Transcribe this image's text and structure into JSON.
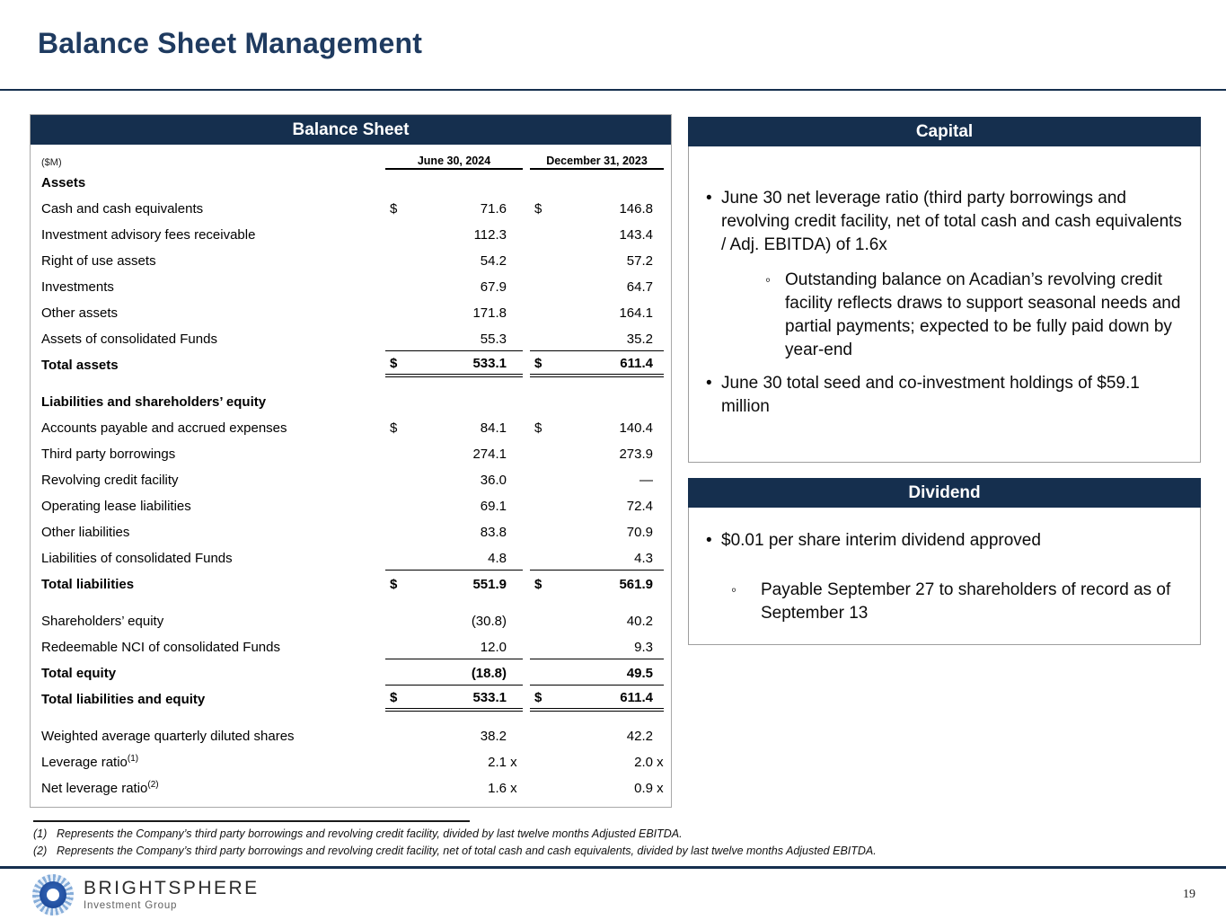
{
  "page": {
    "title": "Balance Sheet Management",
    "page_number": "19"
  },
  "colors": {
    "navy": "#152F4E",
    "title_text": "#1F3B60",
    "box_border": "#9E9E9E",
    "logo_blue": "#1D4A9A",
    "logo_light_blue": "#86ADD9"
  },
  "balance_sheet": {
    "title": "Balance Sheet",
    "unit_label": "($M)",
    "col_headers": [
      "June 30, 2024",
      "December 31, 2023"
    ],
    "rows": [
      {
        "section": true,
        "label": "Assets"
      },
      {
        "label": "Cash and cash equivalents",
        "d1": "$",
        "v1": "71.6",
        "d2": "$",
        "v2": "146.8"
      },
      {
        "label": "Investment advisory fees receivable",
        "v1": "112.3",
        "v2": "143.4"
      },
      {
        "label": "Right of use assets",
        "v1": "54.2",
        "v2": "57.2"
      },
      {
        "label": "Investments",
        "v1": "67.9",
        "v2": "64.7"
      },
      {
        "label": "Other assets",
        "v1": "171.8",
        "v2": "164.1"
      },
      {
        "label": "Assets of consolidated Funds",
        "v1": "55.3",
        "v2": "35.2",
        "u": "s"
      },
      {
        "label": "Total assets",
        "bold": true,
        "d1": "$",
        "v1": "533.1",
        "d2": "$",
        "v2": "611.4",
        "u": "d"
      },
      {
        "spacer": true
      },
      {
        "section": true,
        "label": "Liabilities and shareholders’ equity"
      },
      {
        "label": "Accounts payable and accrued expenses",
        "d1": "$",
        "v1": "84.1",
        "d2": "$",
        "v2": "140.4"
      },
      {
        "label": "Third party borrowings",
        "v1": "274.1",
        "v2": "273.9"
      },
      {
        "label": "Revolving credit facility",
        "v1": "36.0",
        "v2": "—"
      },
      {
        "label": "Operating lease liabilities",
        "v1": "69.1",
        "v2": "72.4"
      },
      {
        "label": "Other liabilities",
        "v1": "83.8",
        "v2": "70.9"
      },
      {
        "label": "Liabilities of consolidated Funds",
        "v1": "4.8",
        "v2": "4.3",
        "u": "s"
      },
      {
        "label": "Total liabilities",
        "bold": true,
        "d1": "$",
        "v1": "551.9",
        "d2": "$",
        "v2": "561.9"
      },
      {
        "spacer": true
      },
      {
        "label": "Shareholders’ equity",
        "v1": "(30.8)",
        "v2": "40.2"
      },
      {
        "label": "Redeemable NCI of consolidated Funds",
        "v1": "12.0",
        "v2": "9.3",
        "u": "s"
      },
      {
        "label": "Total equity",
        "bold": true,
        "v1": "(18.8)",
        "v2": "49.5",
        "u": "s"
      },
      {
        "label": "Total liabilities and equity",
        "bold": true,
        "d1": "$",
        "v1": "533.1",
        "d2": "$",
        "v2": "611.4",
        "u": "d"
      },
      {
        "spacer": true
      },
      {
        "label": "Weighted average quarterly diluted shares",
        "v1": "38.2",
        "v2": "42.2"
      },
      {
        "label": "Leverage ratio",
        "sup": "(1)",
        "v1": "2.1",
        "v2": "2.0",
        "suffix": "x"
      },
      {
        "label": "Net leverage ratio",
        "sup": "(2)",
        "v1": "1.6",
        "v2": "0.9",
        "suffix": "x"
      }
    ]
  },
  "capital": {
    "title": "Capital",
    "bullets": [
      {
        "level": 1,
        "text": "June 30 net leverage ratio (third party borrowings and revolving credit facility, net of total cash and cash equivalents / Adj. EBITDA) of 1.6x"
      },
      {
        "level": 2,
        "text": "Outstanding balance on Acadian’s revolving credit facility reflects draws to support seasonal needs and partial payments; expected to be fully paid down by year-end"
      },
      {
        "level": 1,
        "text": "June 30 total seed and co-investment holdings of $59.1 million"
      }
    ]
  },
  "dividend": {
    "title": "Dividend",
    "bullets": [
      {
        "level": 1,
        "text": "$0.01 per share interim dividend approved"
      },
      {
        "level": 2,
        "text": "Payable September 27 to shareholders of record as of September 13"
      }
    ]
  },
  "footnotes": [
    {
      "num": "(1)",
      "text": "Represents the Company’s third party borrowings and revolving credit facility, divided by last twelve months Adjusted EBITDA."
    },
    {
      "num": "(2)",
      "text": "Represents the Company’s third party borrowings and revolving credit facility, net of total cash and cash equivalents, divided by last twelve months Adjusted EBITDA."
    }
  ],
  "footer": {
    "brand": "BRIGHTSPHERE",
    "tagline": "Investment Group"
  }
}
